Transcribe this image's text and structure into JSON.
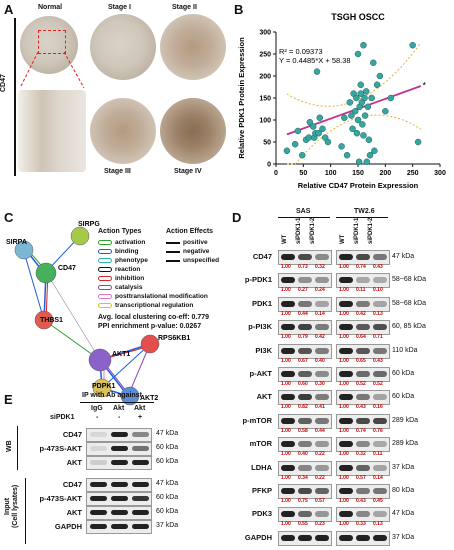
{
  "panels": {
    "A": "A",
    "B": "B",
    "C": "C",
    "D": "D",
    "E": "E"
  },
  "panelA": {
    "col_labels": [
      "Normal",
      "Stage I",
      "Stage II"
    ],
    "bottom_labels": [
      "Stage III",
      "Stage IV"
    ],
    "row_label": "CD47"
  },
  "chart_data": {
    "type": "scatter",
    "title": "TSGH OSCC",
    "xlabel": "Relative CD47 Protein Expression",
    "ylabel": "Relative PDK1 Protein Expression",
    "xlim": [
      0,
      300
    ],
    "ylim": [
      0,
      300
    ],
    "xticks": [
      "0",
      "50",
      "100",
      "150",
      "200",
      "250",
      "300"
    ],
    "yticks": [
      "0",
      "50",
      "100",
      "150",
      "200",
      "250",
      "300"
    ],
    "annotations": [
      "R² = 0.09373",
      "Y = 0.4485*X + 58.38"
    ],
    "marker": "*",
    "colors": {
      "points": "#35a7a0",
      "fit": "#c5318a",
      "ci": "#e3b23c"
    },
    "fit": {
      "slope": 0.4485,
      "intercept": 58.38
    },
    "points": [
      [
        20,
        30
      ],
      [
        35,
        45
      ],
      [
        40,
        75
      ],
      [
        48,
        20
      ],
      [
        55,
        55
      ],
      [
        60,
        60
      ],
      [
        62,
        95
      ],
      [
        68,
        85
      ],
      [
        70,
        60
      ],
      [
        72,
        70
      ],
      [
        75,
        210
      ],
      [
        78,
        70
      ],
      [
        80,
        105
      ],
      [
        85,
        80
      ],
      [
        90,
        60
      ],
      [
        95,
        50
      ],
      [
        120,
        40
      ],
      [
        125,
        105
      ],
      [
        130,
        20
      ],
      [
        135,
        140
      ],
      [
        138,
        110
      ],
      [
        140,
        80
      ],
      [
        142,
        160
      ],
      [
        145,
        120
      ],
      [
        147,
        150
      ],
      [
        148,
        70
      ],
      [
        150,
        250
      ],
      [
        150,
        100
      ],
      [
        152,
        5
      ],
      [
        153,
        130
      ],
      [
        155,
        180
      ],
      [
        155,
        160
      ],
      [
        157,
        140
      ],
      [
        158,
        90
      ],
      [
        160,
        270
      ],
      [
        160,
        65
      ],
      [
        162,
        150
      ],
      [
        163,
        110
      ],
      [
        165,
        165
      ],
      [
        166,
        5
      ],
      [
        168,
        130
      ],
      [
        170,
        55
      ],
      [
        172,
        20
      ],
      [
        175,
        150
      ],
      [
        178,
        230
      ],
      [
        180,
        30
      ],
      [
        185,
        180
      ],
      [
        190,
        200
      ],
      [
        200,
        120
      ],
      [
        210,
        150
      ],
      [
        250,
        270
      ],
      [
        260,
        50
      ]
    ]
  },
  "panelC": {
    "nodes": [
      "SIRPG",
      "SIRPA",
      "CD47",
      "THBS1",
      "AKT1",
      "RPS6KB1",
      "PDPK1",
      "AKT2"
    ],
    "action_types_title": "Action Types",
    "action_types": [
      "activation",
      "binding",
      "phenotype",
      "reaction",
      "inhibition",
      "catalysis",
      "posttranslational modification",
      "transcriptional regulation"
    ],
    "action_type_colors": [
      "#2ca02c",
      "#1f5fd6",
      "#2bb3a8",
      "#111111",
      "#d62728",
      "#8e44ad",
      "#e377c2",
      "#e8c000"
    ],
    "action_effects_title": "Action Effects",
    "action_effects": [
      "positive",
      "negative",
      "unspecified"
    ],
    "stats": [
      "Avg. local clustering co-eff: 0.779",
      "PPI enrichment p-value: 0.0267"
    ]
  },
  "panelD": {
    "groups": [
      "SAS",
      "TW2.6"
    ],
    "lanes": [
      "WT",
      "siPDK1-1",
      "siPDK1-2"
    ],
    "rows": [
      {
        "label": "CD47",
        "kda": "47 kDa",
        "q1": [
          "1.00",
          "0.73",
          "0.32"
        ],
        "q2": [
          "1.00",
          "0.74",
          "0.43"
        ]
      },
      {
        "label": "p-PDK1",
        "kda": "58~68 kDa",
        "q1": [
          "1.00",
          "0.27",
          "0.24"
        ],
        "q2": [
          "1.00",
          "0.11",
          "0.10"
        ]
      },
      {
        "label": "PDK1",
        "kda": "58~68 kDa",
        "q1": [
          "1.00",
          "0.44",
          "0.14"
        ],
        "q2": [
          "1.00",
          "0.42",
          "0.13"
        ]
      },
      {
        "label": "p-PI3K",
        "kda": "60, 85 kDa",
        "q1": [
          "1.00",
          "0.79",
          "0.42"
        ],
        "q2": [
          "1.00",
          "0.64",
          "0.71"
        ]
      },
      {
        "label": "PI3K",
        "kda": "110 kDa",
        "q1": [
          "1.00",
          "0.67",
          "0.40"
        ],
        "q2": [
          "1.00",
          "0.65",
          "0.43"
        ]
      },
      {
        "label": "p-AKT",
        "kda": "60 kDa",
        "q1": [
          "1.00",
          "0.60",
          "0.30"
        ],
        "q2": [
          "1.00",
          "0.52",
          "0.52"
        ]
      },
      {
        "label": "AKT",
        "kda": "60 kDa",
        "q1": [
          "1.00",
          "0.82",
          "0.41"
        ],
        "q2": [
          "1.00",
          "0.43",
          "0.16"
        ]
      },
      {
        "label": "p-mTOR",
        "kda": "289 kDa",
        "q1": [
          "1.00",
          "0.58",
          "0.44"
        ],
        "q2": [
          "1.00",
          "0.74",
          "0.76"
        ]
      },
      {
        "label": "mTOR",
        "kda": "289 kDa",
        "q1": [
          "1.00",
          "0.40",
          "0.22"
        ],
        "q2": [
          "1.00",
          "0.32",
          "0.11"
        ]
      },
      {
        "label": "LDHA",
        "kda": "37 kDa",
        "q1": [
          "1.00",
          "0.34",
          "0.22"
        ],
        "q2": [
          "1.00",
          "0.57",
          "0.14"
        ]
      },
      {
        "label": "PFKP",
        "kda": "80 kDa",
        "q1": [
          "1.00",
          "0.75",
          "0.57"
        ],
        "q2": [
          "1.00",
          "0.43",
          "0.45"
        ]
      },
      {
        "label": "PDK3",
        "kda": "47 kDa",
        "q1": [
          "1.00",
          "0.55",
          "0.23"
        ],
        "q2": [
          "1.00",
          "0.33",
          "0.13"
        ]
      },
      {
        "label": "GAPDH",
        "kda": "37 kDa",
        "q1": [],
        "q2": []
      }
    ]
  },
  "panelE": {
    "header": "IP with Ab against",
    "lanes": [
      "IgG",
      "Akt",
      "Akt"
    ],
    "sipdk1_label": "siPDK1",
    "sipdk1": [
      "-",
      "-",
      "+"
    ],
    "wb_label": "WB",
    "input_label": "Input\n(Cell lysates)",
    "rows": [
      {
        "label": "CD47",
        "kda": "47 kDa"
      },
      {
        "label": "p-473S-AKT",
        "kda": "60 kDa"
      },
      {
        "label": "AKT",
        "kda": "60 kDa"
      },
      {
        "label": "CD47",
        "kda": "47 kDa"
      },
      {
        "label": "p-473S-AKT",
        "kda": "60 kDa"
      },
      {
        "label": "AKT",
        "kda": "60 kDa"
      },
      {
        "label": "GAPDH",
        "kda": "37 kDa"
      }
    ]
  }
}
